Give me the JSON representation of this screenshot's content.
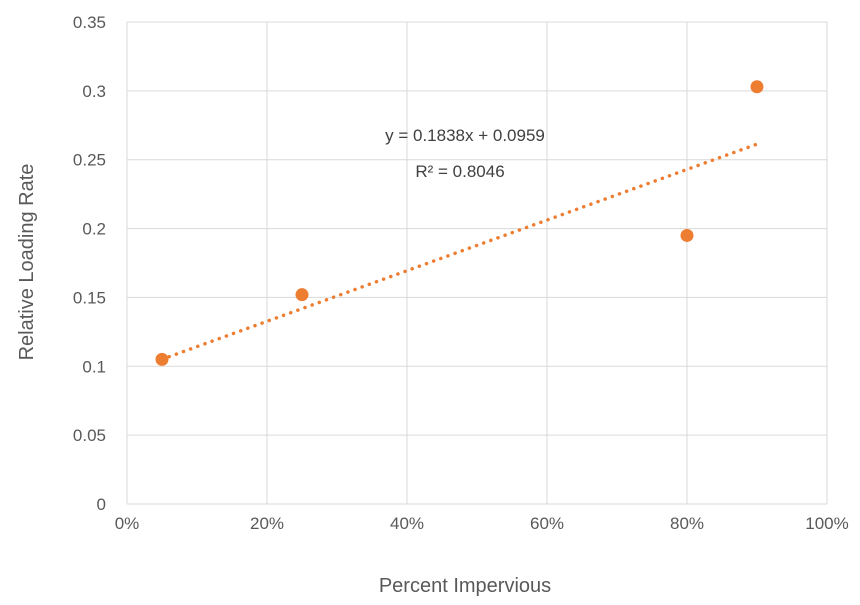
{
  "chart_data": {
    "type": "scatter",
    "title": "",
    "xlabel": "Percent Impervious",
    "ylabel": "Relative Loading Rate",
    "xlim": [
      0,
      1
    ],
    "ylim": [
      0,
      0.35
    ],
    "x_ticks": [
      0,
      0.2,
      0.4,
      0.6,
      0.8,
      1.0
    ],
    "x_tick_labels": [
      "0%",
      "20%",
      "40%",
      "60%",
      "80%",
      "100%"
    ],
    "y_ticks": [
      0,
      0.05,
      0.1,
      0.15,
      0.2,
      0.25,
      0.3,
      0.35
    ],
    "y_tick_labels": [
      "0",
      "0.05",
      "0.1",
      "0.15",
      "0.2",
      "0.25",
      "0.3",
      "0.35"
    ],
    "grid": true,
    "legend": "none",
    "series": [
      {
        "x": [
          0.05,
          0.25,
          0.8,
          0.9
        ],
        "y": [
          0.105,
          0.152,
          0.195,
          0.303
        ],
        "color": "#ED7D31"
      }
    ],
    "trendline": {
      "type": "linear",
      "slope": 0.1838,
      "intercept": 0.0959,
      "x_range": [
        0.05,
        0.9
      ],
      "style": "dotted",
      "color": "#ED7D31",
      "equation": "y = 0.1838x  + 0.0959",
      "r_squared": "R² = 0.8046"
    }
  }
}
